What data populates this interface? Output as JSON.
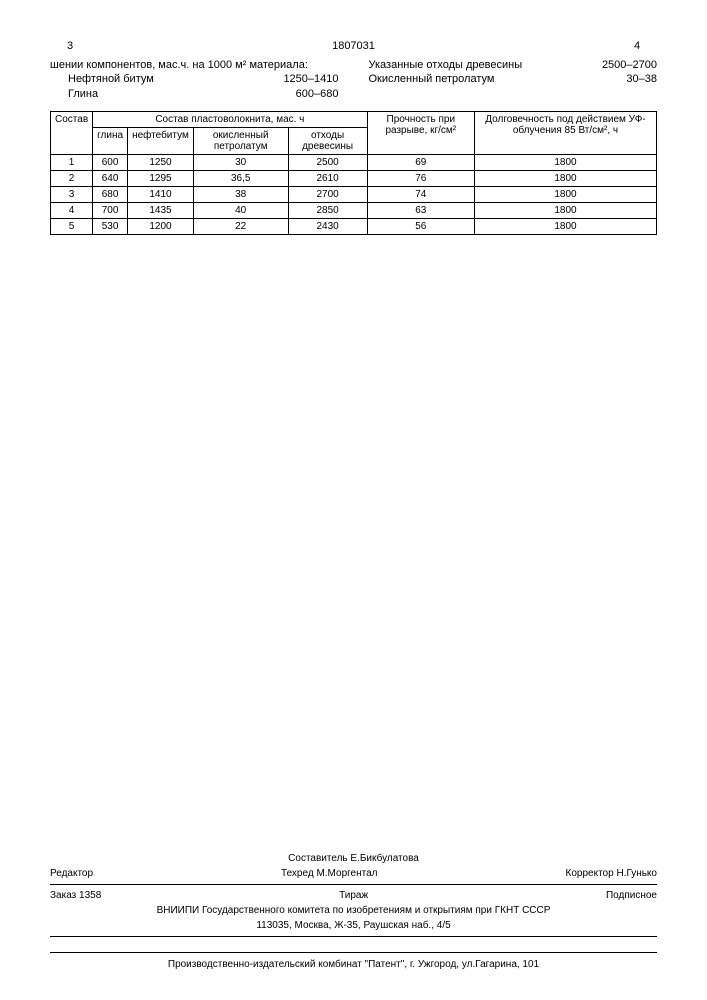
{
  "header": {
    "left_page": "3",
    "doc_number": "1807031",
    "right_page": "4"
  },
  "left_col": {
    "intro": "шении компонентов, мас.ч. на 1000 м² материала:",
    "items": [
      {
        "label": "Нефтяной битум",
        "value": "1250–1410"
      },
      {
        "label": "Глина",
        "value": "600–680"
      }
    ]
  },
  "right_col": {
    "items": [
      {
        "label": "Указанные отходы древесины",
        "value": "2500–2700"
      },
      {
        "label": "Окисленный петролатум",
        "value": "30–38"
      }
    ]
  },
  "table": {
    "headers": {
      "sostav": "Состав",
      "group": "Состав пластоволокнита, мас. ч",
      "sub": [
        "глина",
        "нефтебитум",
        "окисленный петролатум",
        "отходы древесины"
      ],
      "strength": "Прочность при разрыве, кг/см²",
      "durability": "Долговечность под действием УФ-облучения 85 Вт/см², ч"
    },
    "rows": [
      [
        "1",
        "600",
        "1250",
        "30",
        "2500",
        "69",
        "1800"
      ],
      [
        "2",
        "640",
        "1295",
        "36,5",
        "2610",
        "76",
        "1800"
      ],
      [
        "3",
        "680",
        "1410",
        "38",
        "2700",
        "74",
        "1800"
      ],
      [
        "4",
        "700",
        "1435",
        "40",
        "2850",
        "63",
        "1800"
      ],
      [
        "5",
        "530",
        "1200",
        "22",
        "2430",
        "56",
        "1800"
      ]
    ]
  },
  "footer": {
    "compiler": "Составитель  Е.Бикбулатова",
    "editor_label": "Редактор",
    "tech": "Техред М.Моргентал",
    "corrector": "Корректор    Н.Гунько",
    "order": "Заказ 1358",
    "tirazh": "Тираж",
    "podpisnoe": "Подписное",
    "org1": "ВНИИПИ Государственного комитета по изобретениям и открытиям при ГКНТ СССР",
    "org2": "113035, Москва, Ж-35, Раушская наб., 4/5",
    "publisher": "Производственно-издательский комбинат \"Патент\", г. Ужгород, ул.Гагарина, 101"
  }
}
